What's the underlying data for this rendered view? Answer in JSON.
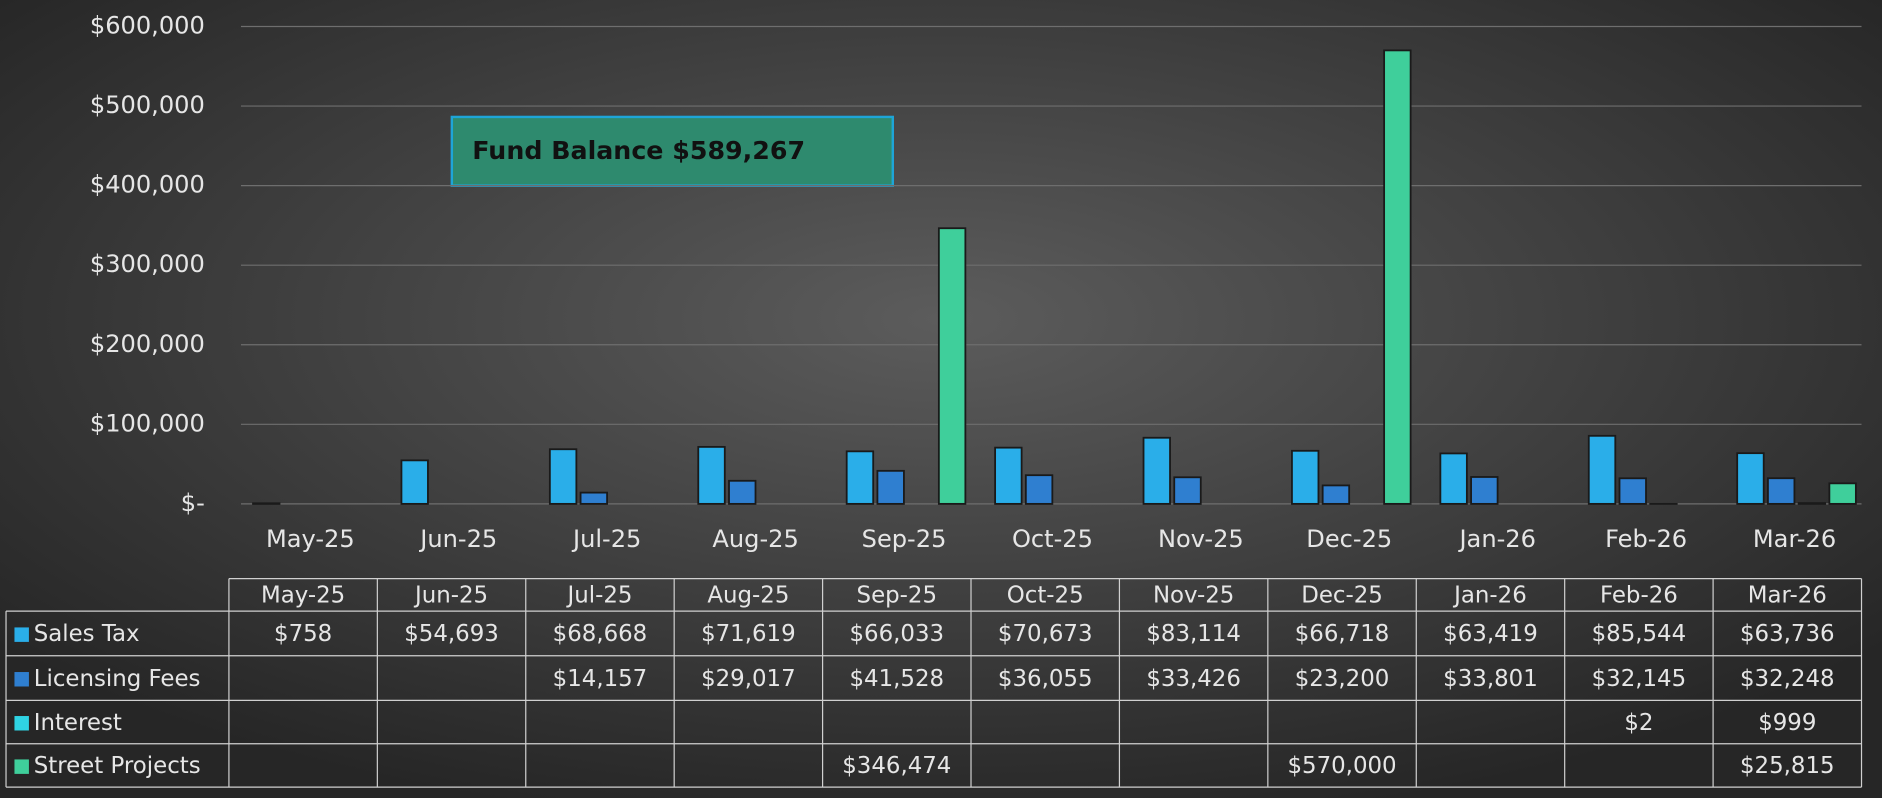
{
  "chart_data": {
    "type": "bar",
    "categories": [
      "May-25",
      "Jun-25",
      "Jul-25",
      "Aug-25",
      "Sep-25",
      "Oct-25",
      "Nov-25",
      "Dec-25",
      "Jan-26",
      "Feb-26",
      "Mar-26"
    ],
    "series": [
      {
        "name": "Sales Tax",
        "color": "#2aaee9",
        "values": [
          758,
          54693,
          68668,
          71619,
          66033,
          70673,
          83114,
          66718,
          63419,
          85544,
          63736
        ],
        "value_labels": [
          "$758",
          "$54,693",
          "$68,668",
          "$71,619",
          "$66,033",
          "$70,673",
          "$83,114",
          "$66,718",
          "$63,419",
          "$85,544",
          "$63,736"
        ]
      },
      {
        "name": "Licensing Fees",
        "color": "#2f7fd0",
        "values": [
          null,
          null,
          14157,
          29017,
          41528,
          36055,
          33426,
          23200,
          33801,
          32145,
          32248
        ],
        "value_labels": [
          null,
          null,
          "$14,157",
          "$29,017",
          "$41,528",
          "$36,055",
          "$33,426",
          "$23,200",
          "$33,801",
          "$32,145",
          "$32,248"
        ]
      },
      {
        "name": "Interest",
        "color": "#2fd3e3",
        "values": [
          null,
          null,
          null,
          null,
          null,
          null,
          null,
          null,
          null,
          2,
          999
        ],
        "value_labels": [
          null,
          null,
          null,
          null,
          null,
          null,
          null,
          null,
          null,
          "$2",
          "$999"
        ]
      },
      {
        "name": "Street Projects",
        "color": "#3fcf9b",
        "values": [
          null,
          null,
          null,
          null,
          346474,
          null,
          null,
          570000,
          null,
          null,
          25815
        ],
        "value_labels": [
          null,
          null,
          null,
          null,
          "$346,474",
          null,
          null,
          "$570,000",
          null,
          null,
          "$25,815"
        ]
      }
    ],
    "ylim": [
      0,
      600000
    ],
    "yticks": [
      {
        "value": 0,
        "label": "$-"
      },
      {
        "value": 100000,
        "label": "$100,000"
      },
      {
        "value": 200000,
        "label": "$200,000"
      },
      {
        "value": 300000,
        "label": "$300,000"
      },
      {
        "value": 400000,
        "label": "$400,000"
      },
      {
        "value": 500000,
        "label": "$500,000"
      },
      {
        "value": 600000,
        "label": "$600,000"
      }
    ],
    "grid": true,
    "annotation": "Fund Balance $589,267"
  }
}
